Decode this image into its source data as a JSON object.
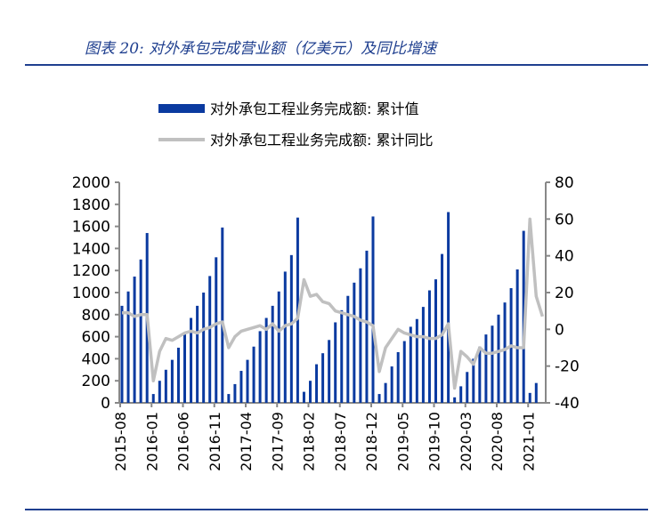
{
  "header": {
    "title": "图表 20:  对外承包完成营业额（亿美元）及同比增速"
  },
  "chart_data": {
    "type": "bar+line",
    "title": "对外承包完成营业额（亿美元）及同比增速",
    "legend": [
      "对外承包工程业务完成额: 累计值",
      "对外承包工程业务完成额: 累计同比"
    ],
    "legend_position": "top-center",
    "left_axis": {
      "ylim": [
        0,
        2000
      ],
      "ticks": [
        "0",
        "200",
        "400",
        "600",
        "800",
        "1000",
        "1200",
        "1400",
        "1600",
        "1800",
        "2000"
      ]
    },
    "right_axis": {
      "ylim": [
        -40,
        80
      ],
      "ticks": [
        "-40",
        "-20",
        "0",
        "20",
        "40",
        "60",
        "80"
      ]
    },
    "x_tick_labels": [
      "2015-08",
      "2016-01",
      "2016-06",
      "2016-11",
      "2017-04",
      "2017-09",
      "2018-02",
      "2018-07",
      "2018-12",
      "2019-05",
      "2019-10",
      "2020-03",
      "2020-08",
      "2021-01"
    ],
    "start": "2015-08",
    "series": [
      {
        "name": "对外承包工程业务完成额: 累计值",
        "type": "bar",
        "color": "#0a3aa0",
        "values": [
          880,
          1010,
          1145,
          1300,
          1540,
          80,
          200,
          300,
          390,
          500,
          620,
          770,
          880,
          1000,
          1150,
          1320,
          1590,
          80,
          170,
          290,
          390,
          510,
          650,
          770,
          880,
          1010,
          1190,
          1340,
          1680,
          100,
          200,
          350,
          450,
          570,
          730,
          840,
          970,
          1090,
          1220,
          1380,
          1690,
          80,
          180,
          330,
          460,
          560,
          690,
          760,
          870,
          1020,
          1120,
          1350,
          1730,
          50,
          150,
          280,
          400,
          510,
          620,
          700,
          800,
          910,
          1040,
          1210,
          1560,
          90,
          180,
          null
        ]
      },
      {
        "name": "对外承包工程业务完成额: 累计同比",
        "type": "line",
        "color": "#c0c0c0",
        "values": [
          9,
          9,
          7,
          8,
          8,
          -28,
          -12,
          -5,
          -6,
          -4,
          -2,
          -1,
          -2,
          0,
          1,
          3,
          4,
          -10,
          -4,
          -1,
          0,
          1,
          2,
          0,
          3,
          -1,
          2,
          3,
          6,
          27,
          18,
          19,
          15,
          14,
          10,
          9,
          8,
          7,
          5,
          4,
          2,
          -23,
          -10,
          -5,
          0,
          -2,
          -3,
          -4,
          -4,
          -5,
          -5,
          -3,
          3,
          -32,
          -12,
          -15,
          -19,
          -10,
          -13,
          -13,
          -12,
          -11,
          -9,
          -10,
          -10,
          60,
          18,
          7
        ]
      }
    ]
  }
}
